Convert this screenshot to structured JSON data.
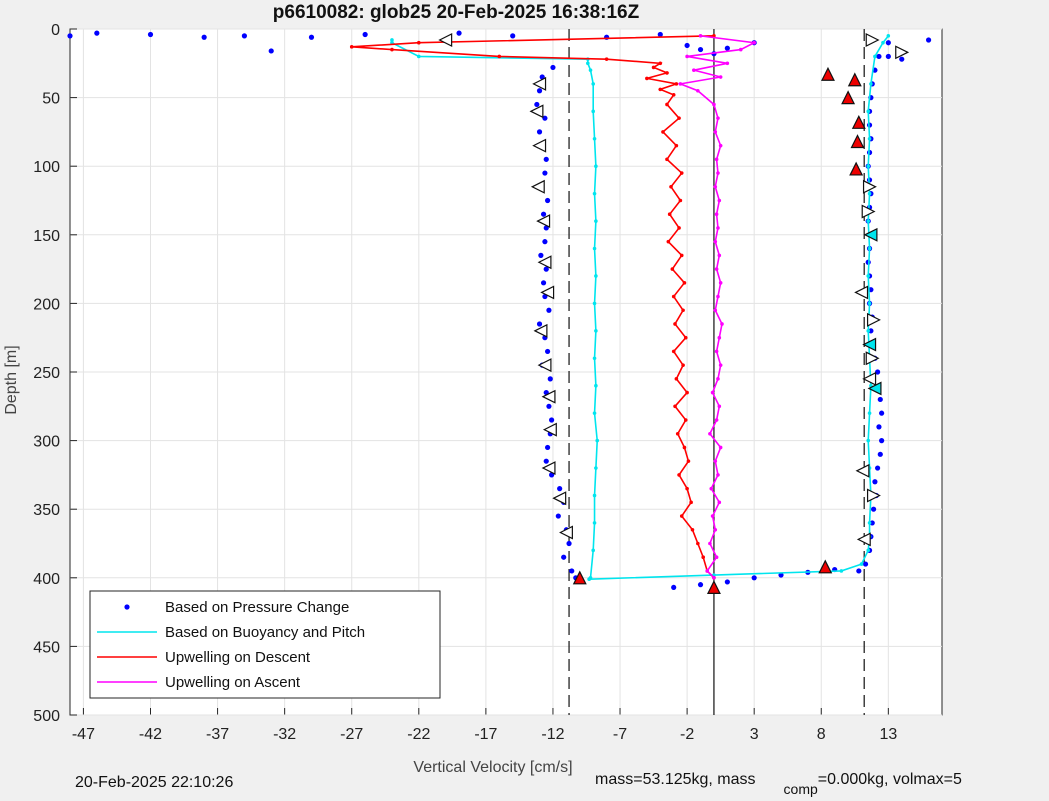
{
  "chart_data": {
    "type": "scatter",
    "title": "p6610082: glob25 20-Feb-2025 16:38:16Z",
    "xlabel": "Vertical Velocity [cm/s]",
    "ylabel": "Depth [m]",
    "xlim": [
      -48,
      17
    ],
    "ylim": [
      0,
      500
    ],
    "y_reversed": true,
    "grid": true,
    "xticks": [
      -47,
      -42,
      -37,
      -32,
      -27,
      -22,
      -17,
      -12,
      -7,
      -2,
      3,
      8,
      13
    ],
    "yticks": [
      0,
      50,
      100,
      150,
      200,
      250,
      300,
      350,
      400,
      450,
      500
    ],
    "vlines": [
      {
        "x": -10.8,
        "style": "dashed"
      },
      {
        "x": 11.2,
        "style": "dashed"
      },
      {
        "x": 0,
        "style": "solid"
      }
    ],
    "legend_placement": "bottom-left",
    "series": [
      {
        "name": "Based on Pressure Change",
        "color": "#0000ff",
        "marker": "dot",
        "profiles": [
          {
            "depth": [
              28,
              35,
              45,
              55,
              65,
              75,
              85,
              95,
              105,
              115,
              125,
              135,
              145,
              155,
              165,
              175,
              185,
              195,
              205,
              215,
              225,
              235,
              245,
              255,
              265,
              275,
              285,
              295,
              305,
              315,
              325,
              335,
              345,
              355,
              365,
              375,
              385,
              395,
              400
            ],
            "x": [
              -12.0,
              -12.8,
              -13.0,
              -13.2,
              -12.6,
              -13.0,
              -13.1,
              -12.5,
              -12.6,
              -13.0,
              -12.4,
              -12.7,
              -12.5,
              -12.6,
              -12.9,
              -12.5,
              -12.7,
              -12.6,
              -12.3,
              -13.0,
              -12.6,
              -12.4,
              -12.8,
              -12.2,
              -12.5,
              -12.3,
              -12.1,
              -12.2,
              -12.4,
              -12.5,
              -12.1,
              -11.5,
              -11.2,
              -11.6,
              -11.0,
              -10.8,
              -11.2,
              -10.6,
              -10.3
            ]
          },
          {
            "depth": [
              10,
              20,
              30,
              40,
              50,
              60,
              70,
              80,
              90,
              100,
              110,
              120,
              130,
              140,
              150,
              160,
              170,
              180,
              190,
              200,
              210,
              220,
              230,
              240,
              250,
              260,
              270,
              280,
              290,
              300,
              310,
              320,
              330,
              340,
              350,
              360,
              370,
              380,
              390,
              395
            ],
            "x": [
              13.0,
              12.3,
              12.0,
              11.8,
              11.7,
              11.6,
              11.6,
              11.7,
              11.6,
              11.5,
              11.6,
              11.7,
              11.6,
              11.5,
              11.7,
              11.6,
              11.5,
              11.6,
              11.7,
              11.6,
              11.8,
              11.7,
              11.6,
              12.0,
              12.2,
              12.3,
              12.4,
              12.5,
              12.3,
              12.5,
              12.4,
              12.2,
              12.0,
              12.1,
              11.9,
              11.8,
              11.7,
              11.6,
              11.3,
              10.8
            ]
          },
          {
            "depth": [
              5,
              3,
              4,
              6,
              5,
              4,
              3,
              5,
              6,
              4,
              12,
              15,
              18,
              14,
              10,
              20,
              8,
              22,
              16,
              6
            ],
            "x": [
              -48,
              -46,
              -42,
              -38,
              -35,
              -26,
              -19,
              -15,
              -8,
              -4,
              -2,
              -1,
              0,
              1,
              3,
              13,
              16,
              14,
              -33,
              -30
            ]
          },
          {
            "depth": [
              407,
              405,
              403,
              400,
              398,
              396,
              394
            ],
            "x": [
              -3,
              -1,
              1,
              3,
              5,
              7,
              9
            ]
          }
        ]
      },
      {
        "name": "Based on Buoyancy and Pitch",
        "color": "#00e5ee",
        "marker": "line",
        "profiles": [
          {
            "depth": [
              8,
              10,
              20,
              22,
              25,
              30,
              40,
              60,
              80,
              100,
              120,
              140,
              160,
              180,
              200,
              220,
              240,
              260,
              280,
              300,
              320,
              340,
              360,
              380,
              400,
              401
            ],
            "x": [
              -24,
              -24,
              -22,
              -9.4,
              -9.4,
              -9.2,
              -9.0,
              -9.0,
              -8.9,
              -8.8,
              -8.9,
              -8.8,
              -8.9,
              -8.8,
              -8.9,
              -8.8,
              -8.9,
              -8.8,
              -8.9,
              -8.7,
              -8.8,
              -8.9,
              -8.9,
              -9.0,
              -9.2,
              -9.3
            ]
          },
          {
            "depth": [
              401,
              398,
              395,
              390,
              380,
              370,
              360,
              340,
              320,
              300,
              280,
              260,
              240,
              220,
              200,
              180,
              160,
              140,
              120,
              100,
              80,
              60,
              40,
              20,
              10,
              5
            ],
            "x": [
              -9.3,
              0,
              9.5,
              11.0,
              11.5,
              11.6,
              11.6,
              11.7,
              11.6,
              11.5,
              11.6,
              11.7,
              11.6,
              11.5,
              11.6,
              11.5,
              11.6,
              11.5,
              11.6,
              11.5,
              11.6,
              11.5,
              11.7,
              12.0,
              12.6,
              13.0
            ]
          }
        ]
      },
      {
        "name": "Upwelling on Descent",
        "color": "#ff0000",
        "marker": "line",
        "profiles": [
          {
            "depth": [
              5,
              10,
              13,
              15,
              20,
              22,
              25,
              28,
              32,
              36,
              40,
              44,
              48,
              55,
              65,
              75,
              85,
              95,
              105,
              115,
              125,
              135,
              145,
              155,
              165,
              175,
              185,
              195,
              205,
              215,
              225,
              235,
              245,
              255,
              265,
              275,
              285,
              295,
              305,
              315,
              325,
              335,
              345,
              355,
              365,
              375,
              385,
              395,
              400
            ],
            "x": [
              0,
              -22,
              -27,
              -24,
              -16,
              -8,
              -4,
              -4.5,
              -3.5,
              -5,
              -2.8,
              -4,
              -3,
              -3.5,
              -2.6,
              -3.8,
              -2.8,
              -3.5,
              -2.4,
              -3.2,
              -2.5,
              -3.3,
              -2.6,
              -3.4,
              -2.4,
              -3.1,
              -2.2,
              -3.0,
              -2.3,
              -2.9,
              -2.1,
              -3.0,
              -2.3,
              -2.8,
              -2.0,
              -2.9,
              -2.1,
              -2.7,
              -2.2,
              -1.9,
              -2.6,
              -2.0,
              -1.7,
              -2.4,
              -1.6,
              -1.2,
              -0.8,
              -0.5,
              0
            ]
          }
        ]
      },
      {
        "name": "Upwelling on Ascent",
        "color": "#ff00ff",
        "marker": "line",
        "profiles": [
          {
            "depth": [
              400,
              395,
              385,
              375,
              365,
              355,
              345,
              335,
              325,
              315,
              305,
              295,
              285,
              275,
              265,
              255,
              245,
              235,
              225,
              215,
              205,
              195,
              185,
              175,
              165,
              155,
              145,
              135,
              125,
              115,
              105,
              95,
              85,
              75,
              65,
              55,
              45,
              40,
              35,
              30,
              25,
              20,
              15,
              10,
              5
            ],
            "x": [
              0,
              -0.5,
              0.2,
              -0.3,
              0.1,
              -0.1,
              0.4,
              -0.2,
              0.3,
              0.1,
              0.5,
              -0.3,
              0.2,
              0.4,
              -0.1,
              0.3,
              0.5,
              0.2,
              0.4,
              0.6,
              0.1,
              0.3,
              0.5,
              0.2,
              0.4,
              0.1,
              0.3,
              0.2,
              0.4,
              0.1,
              0.3,
              0.2,
              0.5,
              0.1,
              0.3,
              0.0,
              -1.2,
              -2.5,
              0.5,
              -1.5,
              1.0,
              -2.0,
              2.0,
              3.0,
              -1.0
            ]
          }
        ]
      }
    ],
    "markers": [
      {
        "shape": "triangle-left",
        "fill": "#ffffff",
        "points": [
          [
            -20,
            8
          ],
          [
            -13,
            40
          ],
          [
            -13.2,
            60
          ],
          [
            -13,
            85
          ],
          [
            -13.1,
            115
          ],
          [
            -12.7,
            140
          ],
          [
            -12.6,
            170
          ],
          [
            -12.4,
            192
          ],
          [
            -12.9,
            220
          ],
          [
            -12.6,
            245
          ],
          [
            -12.3,
            268
          ],
          [
            -12.2,
            292
          ],
          [
            -12.3,
            320
          ],
          [
            -11.5,
            342
          ],
          [
            -11.0,
            367
          ],
          [
            11.0,
            192
          ],
          [
            11.1,
            322
          ],
          [
            11.2,
            372
          ],
          [
            11.6,
            255
          ]
        ]
      },
      {
        "shape": "triangle-right",
        "fill": "#ffffff",
        "points": [
          [
            11.8,
            8
          ],
          [
            14,
            17
          ],
          [
            11.9,
            212
          ],
          [
            11.8,
            240
          ],
          [
            11.9,
            340
          ],
          [
            11.6,
            115
          ],
          [
            11.5,
            133
          ]
        ]
      },
      {
        "shape": "triangle-left",
        "fill": "#00e5ee",
        "points": [
          [
            11.6,
            230
          ],
          [
            12.0,
            262
          ],
          [
            11.7,
            150
          ]
        ]
      },
      {
        "shape": "triangle-up",
        "fill": "#ee0000",
        "points": [
          [
            8.5,
            33
          ],
          [
            10.5,
            37
          ],
          [
            10,
            50
          ],
          [
            10.8,
            68
          ],
          [
            10.7,
            82
          ],
          [
            10.6,
            102
          ],
          [
            8.3,
            392
          ],
          [
            -10,
            400
          ],
          [
            0,
            407
          ]
        ]
      }
    ]
  },
  "footer": {
    "timestamp": "20-Feb-2025 22:10:26",
    "mass_text": "mass=53.125kg, mass",
    "comp_subscript": "comp",
    "comp_text": "=0.000kg, volmax=5"
  }
}
